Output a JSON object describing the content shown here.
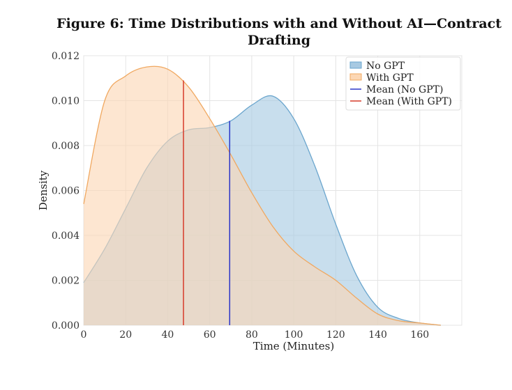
{
  "chart_data": {
    "type": "area",
    "title_line1": "Figure 6: Time Distributions with and Without AI—Contract",
    "title_line2": "Drafting",
    "xlabel": "Time (Minutes)",
    "ylabel": "Density",
    "xlim": [
      0,
      180
    ],
    "ylim": [
      0,
      0.012
    ],
    "xticks": [
      0,
      20,
      40,
      60,
      80,
      100,
      120,
      140,
      160
    ],
    "yticks": [
      "0.000",
      "0.002",
      "0.004",
      "0.006",
      "0.008",
      "0.010",
      "0.012"
    ],
    "grid": true,
    "legend_position": "top-right",
    "x": [
      0,
      10,
      20,
      30,
      40,
      50,
      60,
      70,
      80,
      90,
      100,
      110,
      120,
      130,
      140,
      150,
      160,
      170
    ],
    "series": [
      {
        "name": "No GPT",
        "color": "#6aa5cd",
        "fill": "#a7c9e2",
        "values": [
          0.0019,
          0.0034,
          0.0052,
          0.007,
          0.0082,
          0.0087,
          0.0088,
          0.0091,
          0.0098,
          0.0102,
          0.0092,
          0.0071,
          0.0045,
          0.0022,
          0.0008,
          0.0003,
          0.0001,
          0.0
        ]
      },
      {
        "name": "With GPT",
        "color": "#f0a860",
        "fill": "#fcd7b4",
        "values": [
          0.0054,
          0.01,
          0.0111,
          0.0115,
          0.0114,
          0.0106,
          0.0092,
          0.0076,
          0.0059,
          0.0044,
          0.0033,
          0.0026,
          0.002,
          0.0012,
          0.0005,
          0.0002,
          0.0001,
          0.0
        ]
      }
    ],
    "mean_lines": [
      {
        "name": "Mean (No GPT)",
        "x": 69.5,
        "y_top": 0.0091,
        "color": "#2a35c8"
      },
      {
        "name": "Mean (With GPT)",
        "x": 47.5,
        "y_top": 0.0109,
        "color": "#d63b2a"
      }
    ]
  }
}
